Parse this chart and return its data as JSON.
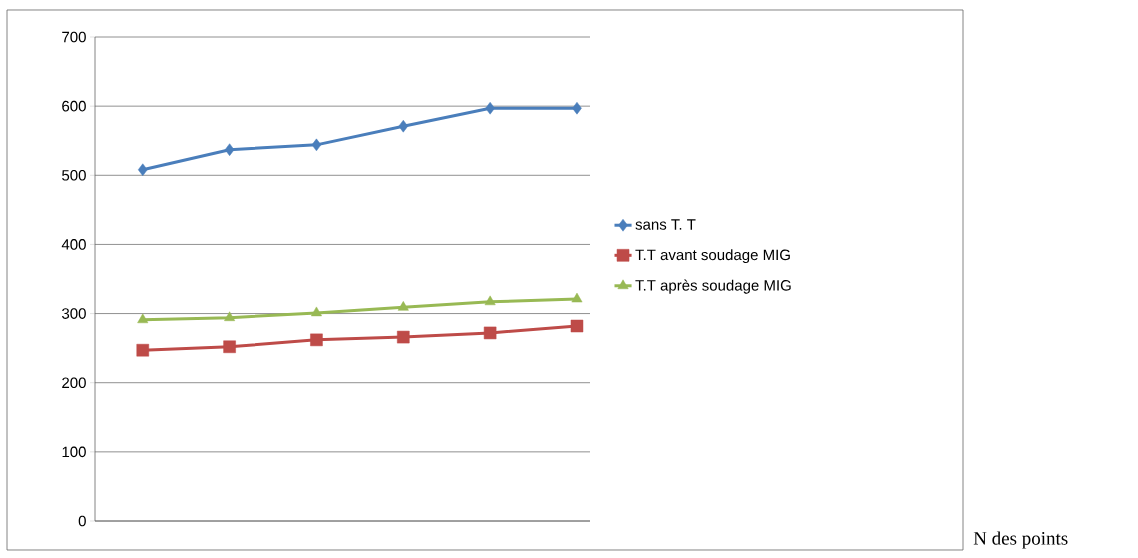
{
  "chart_data": {
    "type": "line",
    "annotations": [
      "N des points"
    ],
    "categories": [
      null,
      null,
      null,
      null,
      null,
      null
    ],
    "series": [
      {
        "name": "sans T. T",
        "color": "#4a7ebb",
        "marker": "diamond",
        "values": [
          508,
          537,
          544,
          571,
          597,
          597
        ]
      },
      {
        "name": "T.T avant soudage MIG",
        "color": "#be4b48",
        "marker": "square",
        "values": [
          247,
          252,
          262,
          266,
          272,
          282
        ]
      },
      {
        "name": "T.T après soudage MIG",
        "color": "#98b954",
        "marker": "triangle",
        "values": [
          291,
          294,
          301,
          309,
          317,
          321
        ]
      }
    ],
    "ylim": [
      0,
      700
    ],
    "yticks": [
      0,
      100,
      200,
      300,
      400,
      500,
      600,
      700
    ],
    "grid": "y",
    "legend": "right"
  }
}
